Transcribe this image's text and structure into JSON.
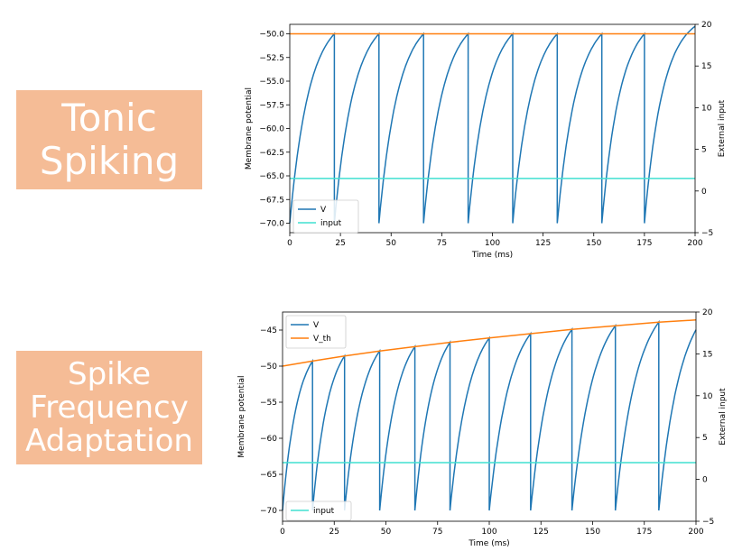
{
  "panels": [
    {
      "label_lines": [
        "Tonic",
        "Spiking"
      ],
      "accent_color": "#f5bc96"
    },
    {
      "label_lines": [
        "Spike",
        "Frequency",
        "Adaptation"
      ],
      "accent_color": "#f5bc96"
    }
  ],
  "chart_data": [
    {
      "type": "line",
      "xlabel": "Time (ms)",
      "ylabel": "Membrane potential",
      "y2label": "External input",
      "xlim": [
        0,
        200
      ],
      "ylim": [
        -71,
        -49
      ],
      "y2lim": [
        -5,
        20
      ],
      "xticks": [
        0,
        25,
        50,
        75,
        100,
        125,
        150,
        175,
        200
      ],
      "yticks": [
        -70.0,
        -67.5,
        -65.0,
        -62.5,
        -60.0,
        -57.5,
        -55.0,
        -52.5,
        -50.0
      ],
      "ytick_labels": [
        "−70.0",
        "−67.5",
        "−65.0",
        "−62.5",
        "−60.0",
        "−57.5",
        "−55.0",
        "−52.5",
        "−50.0"
      ],
      "y2ticks": [
        -5,
        0,
        5,
        10,
        15,
        20
      ],
      "xtick_labels": [
        "0",
        "25",
        "50",
        "75",
        "100",
        "125",
        "150",
        "175",
        "200"
      ],
      "y2tick_labels": [
        "−5",
        "0",
        "5",
        "10",
        "15",
        "20"
      ],
      "legend": {
        "position": "lower-left",
        "entries": [
          {
            "name": "V",
            "color": "#1f77b4"
          },
          {
            "name": "input",
            "color": "#40e0d0"
          }
        ]
      },
      "series": [
        {
          "name": "V",
          "color": "#1f77b4",
          "axis": "left",
          "kind": "spiking",
          "v_rest": -70,
          "spike_times": [
            22,
            44,
            66,
            88,
            110,
            132,
            154,
            175
          ],
          "curvature": 2.3
        },
        {
          "name": "V_th",
          "color": "#ff7f0e",
          "axis": "left",
          "values_x": [
            0,
            200
          ],
          "values_y": [
            -50,
            -50
          ]
        },
        {
          "name": "input",
          "color": "#40e0d0",
          "axis": "right",
          "values_x": [
            0,
            200
          ],
          "values_y": [
            1.5,
            1.5
          ]
        }
      ]
    },
    {
      "type": "line",
      "xlabel": "Time (ms)",
      "ylabel": "Membrane potential",
      "y2label": "External input",
      "xlim": [
        0,
        200
      ],
      "ylim": [
        -71.5,
        -42.5
      ],
      "y2lim": [
        -5,
        20
      ],
      "xticks": [
        0,
        25,
        50,
        75,
        100,
        125,
        150,
        175,
        200
      ],
      "yticks": [
        -70,
        -65,
        -60,
        -55,
        -50,
        -45
      ],
      "ytick_labels": [
        "−70",
        "−65",
        "−60",
        "−55",
        "−50",
        "−45"
      ],
      "y2ticks": [
        -5,
        0,
        5,
        10,
        15,
        20
      ],
      "xtick_labels": [
        "0",
        "25",
        "50",
        "75",
        "100",
        "125",
        "150",
        "175",
        "200"
      ],
      "y2tick_labels": [
        "−5",
        "0",
        "5",
        "10",
        "15",
        "20"
      ],
      "legend_top": {
        "position": "upper-left",
        "entries": [
          {
            "name": "V",
            "color": "#1f77b4"
          },
          {
            "name": "V_th",
            "color": "#ff7f0e"
          }
        ]
      },
      "legend_bottom": {
        "position": "lower-left",
        "entries": [
          {
            "name": "input",
            "color": "#40e0d0"
          }
        ]
      },
      "series": [
        {
          "name": "V",
          "color": "#1f77b4",
          "axis": "left",
          "kind": "spiking",
          "v_rest": -70,
          "spike_times": [
            14.5,
            30,
            47,
            64,
            81,
            100,
            120,
            140,
            161,
            182
          ],
          "curvature": 2.0
        },
        {
          "name": "V_th",
          "color": "#ff7f0e",
          "axis": "left",
          "kind": "threshold",
          "values_x": [
            0,
            14.5,
            30,
            47,
            64,
            81,
            100,
            120,
            140,
            161,
            182,
            200
          ],
          "values_y": [
            -50.0,
            -49.3,
            -48.6,
            -47.9,
            -47.3,
            -46.7,
            -46.1,
            -45.5,
            -44.9,
            -44.4,
            -43.9,
            -43.6
          ]
        },
        {
          "name": "input",
          "color": "#40e0d0",
          "axis": "right",
          "values_x": [
            0,
            200
          ],
          "values_y": [
            2,
            2
          ]
        }
      ]
    }
  ]
}
